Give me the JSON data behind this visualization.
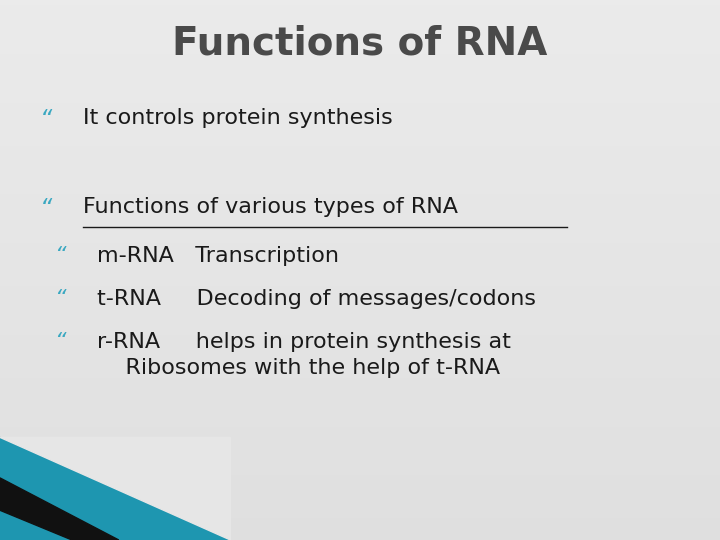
{
  "title": "Functions of RNA",
  "title_color": "#4a4a4a",
  "title_fontsize": 28,
  "bg_color": "#e5e5e5",
  "bullet_color": "#3aa8c1",
  "text_color": "#1a1a1a",
  "bullet1_text": "It controls protein synthesis",
  "bullet2_header": "Functions of various types of RNA",
  "sub_bullet_lines": [
    "m-RNA   Transcription",
    "t-RNA     Decoding of messages/codons",
    "r-RNA     helps in protein synthesis at",
    "Ribosomes with the help of t-RNA"
  ],
  "teal_color": "#1e96b0",
  "black_color": "#111111",
  "figsize": [
    7.2,
    5.4
  ],
  "dpi": 100
}
